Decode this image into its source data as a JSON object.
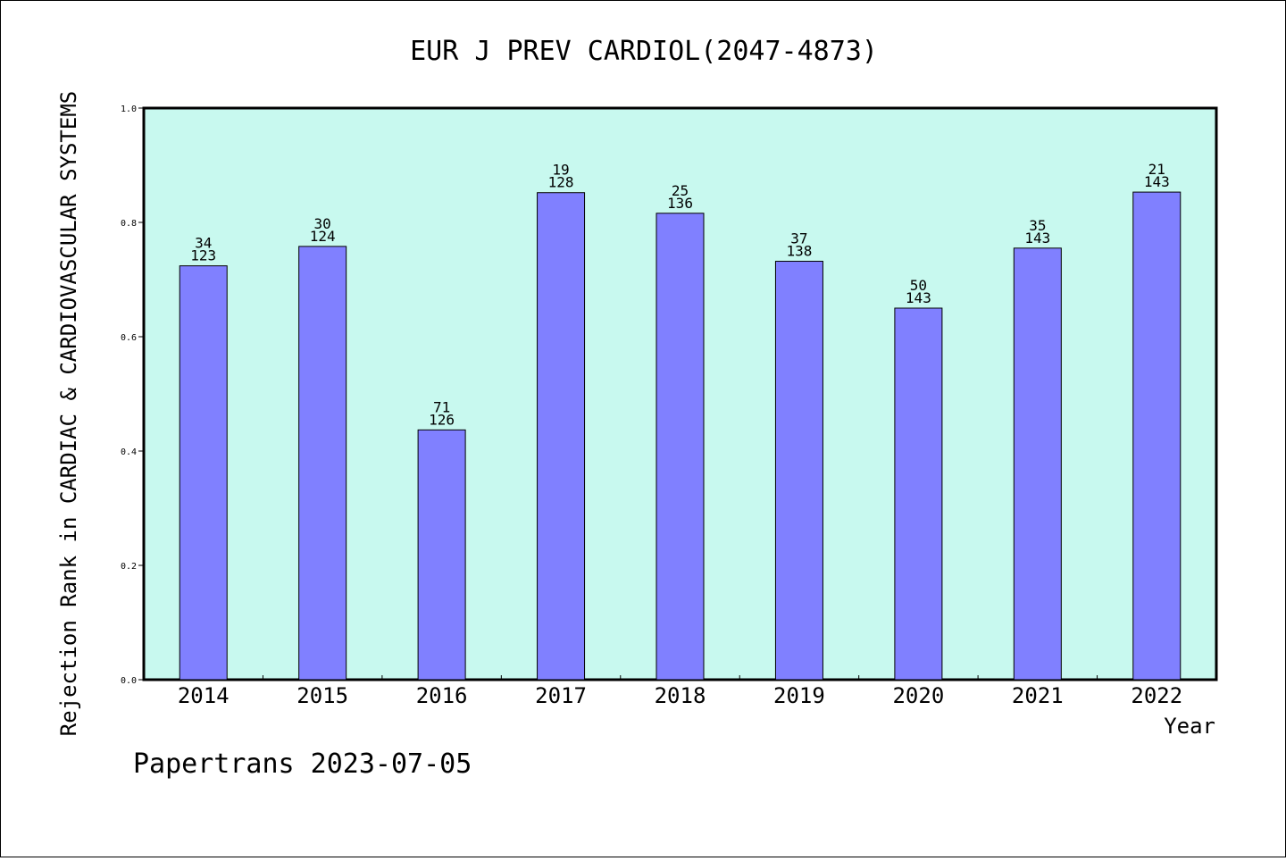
{
  "chart_data": {
    "type": "bar",
    "title": "EUR J PREV CARDIOL(2047-4873)",
    "xlabel": "Year",
    "ylabel": "Rejection Rank in CARDIAC & CARDIOVASCULAR SYSTEMS",
    "ylim": [
      0,
      1.0
    ],
    "yticks": [
      "0.0",
      "0.2",
      "0.4",
      "0.6",
      "0.8",
      "1.0"
    ],
    "categories": [
      "2014",
      "2015",
      "2016",
      "2017",
      "2018",
      "2019",
      "2020",
      "2021",
      "2022"
    ],
    "values": [
      0.724,
      0.758,
      0.437,
      0.852,
      0.816,
      0.732,
      0.65,
      0.755,
      0.853
    ],
    "rank_labels": [
      "34",
      "30",
      "71",
      "19",
      "25",
      "37",
      "50",
      "35",
      "21"
    ],
    "total_labels": [
      "123",
      "124",
      "126",
      "128",
      "136",
      "138",
      "143",
      "143",
      "143"
    ],
    "grid": false,
    "colors": {
      "plot_background": "#c8f9ef",
      "bar_fill": "#8080ff",
      "bar_stroke": "#000000"
    }
  },
  "footer": {
    "text": "Papertrans 2023-07-05"
  }
}
